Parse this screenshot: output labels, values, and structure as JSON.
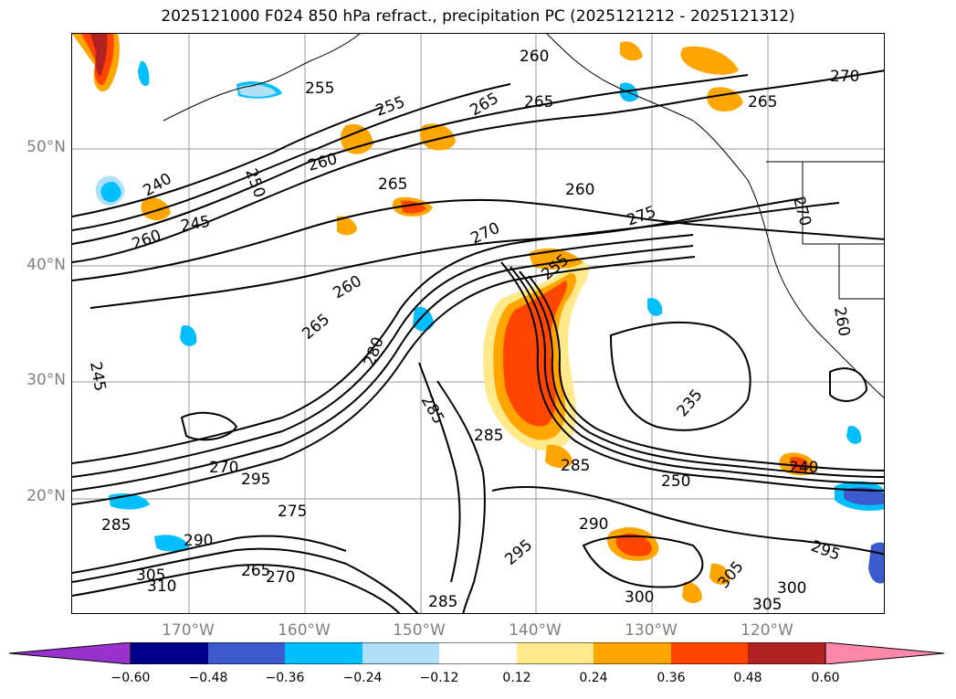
{
  "title": "2025121000 F024 850 hPa refract., precipitation PC (2025121212 - 2025121312)",
  "lat_labels": [
    "50°N",
    "40°N",
    "30°N",
    "20°N"
  ],
  "lon_labels": [
    "170°W",
    "160°W",
    "150°W",
    "140°W",
    "130°W",
    "120°W"
  ],
  "contour_labels": [
    "260",
    "265",
    "255",
    "265",
    "250",
    "260",
    "255",
    "265",
    "260",
    "240",
    "245",
    "260",
    "270",
    "275",
    "265",
    "260",
    "270",
    "265",
    "280",
    "285",
    "285",
    "285",
    "235",
    "240",
    "250",
    "295",
    "270",
    "275",
    "290",
    "285",
    "295",
    "290",
    "285",
    "300",
    "305",
    "300",
    "305",
    "295",
    "310",
    "305",
    "265",
    "270",
    "245",
    "255",
    "260",
    "270"
  ],
  "colorbar": {
    "ticks": [
      "−0.60",
      "−0.48",
      "−0.36",
      "−0.24",
      "−0.12",
      "0.12",
      "0.24",
      "0.36",
      "0.48",
      "0.60"
    ],
    "colors": [
      "#9932cc",
      "#00008b",
      "#3b5bcc",
      "#00bfff",
      "#b0e0f8",
      "#ffffff",
      "#ffe98a",
      "#ffa500",
      "#ff4500",
      "#b22222",
      "#ff88aa"
    ]
  }
}
